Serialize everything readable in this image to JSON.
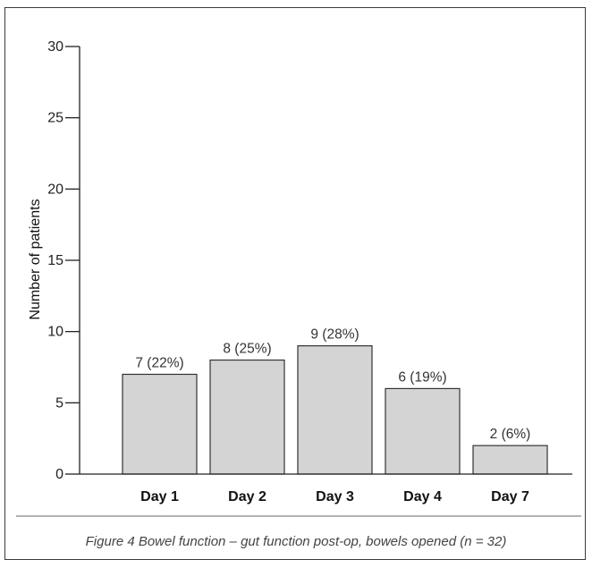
{
  "caption": "Figure 4 Bowel function – gut function post-op, bowels opened (n = 32)",
  "chart_data": {
    "type": "bar",
    "title": "",
    "xlabel": "",
    "ylabel": "Number of patients",
    "ylim": [
      0,
      30
    ],
    "yticks": [
      0,
      5,
      10,
      15,
      20,
      25,
      30
    ],
    "yticklabels": [
      "0",
      "5",
      "10",
      "15",
      "20",
      "25",
      "30"
    ],
    "categories": [
      "Day 1",
      "Day 2",
      "Day 3",
      "Day 4",
      "Day 7"
    ],
    "values": [
      7,
      8,
      9,
      6,
      2
    ],
    "data_labels": [
      "7 (22%)",
      "8 (25%)",
      "9 (28%)",
      "6 (19%)",
      "2 (6%)"
    ],
    "grid": false,
    "bar_color": "#d4d4d4"
  }
}
